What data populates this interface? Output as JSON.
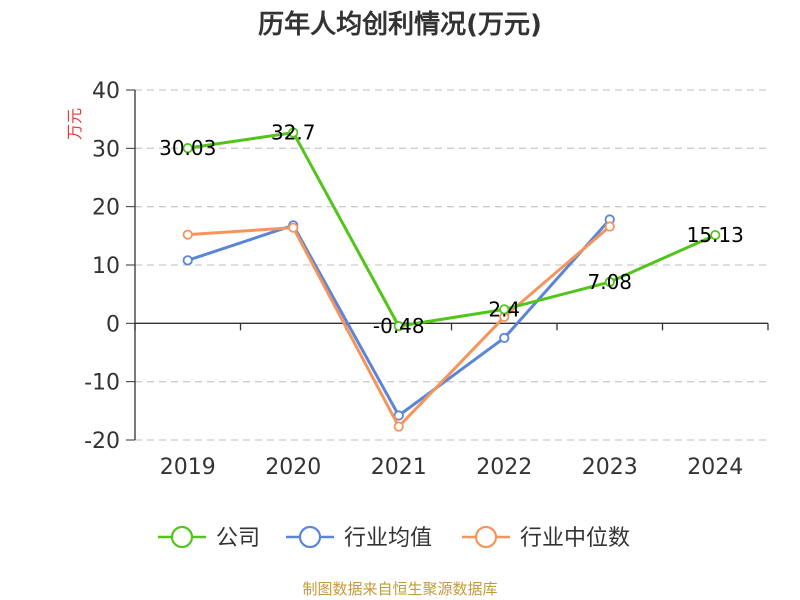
{
  "colors": {
    "company": "#52c41a",
    "industry_avg": "#5b86d8",
    "industry_median": "#f5955c",
    "unit": "#e8393a",
    "source": "#c49a3c"
  },
  "chart_data": {
    "type": "line",
    "title": "历年人均创利情况(万元)",
    "ylabel": "万元",
    "xlabel": "",
    "categories": [
      "2019",
      "2020",
      "2021",
      "2022",
      "2023",
      "2024"
    ],
    "ylim": [
      -20,
      40
    ],
    "yticks": [
      40,
      30,
      20,
      10,
      0,
      -10,
      -20
    ],
    "grid": "horizontal-dashed",
    "legend_position": "bottom",
    "series": [
      {
        "name": "公司",
        "color_key": "company",
        "values": [
          30.03,
          32.7,
          -0.48,
          2.4,
          7.08,
          15.13
        ],
        "labels": [
          "30.03",
          "32.7",
          "-0.48",
          "2.4",
          "7.08",
          "15.13"
        ]
      },
      {
        "name": "行业均值",
        "color_key": "industry_avg",
        "values": [
          10.8,
          16.8,
          -15.8,
          -2.5,
          17.8,
          null
        ]
      },
      {
        "name": "行业中位数",
        "color_key": "industry_median",
        "values": [
          15.2,
          16.4,
          -17.7,
          1.1,
          16.6,
          null
        ]
      }
    ]
  },
  "source_text": "制图数据来自恒生聚源数据库"
}
